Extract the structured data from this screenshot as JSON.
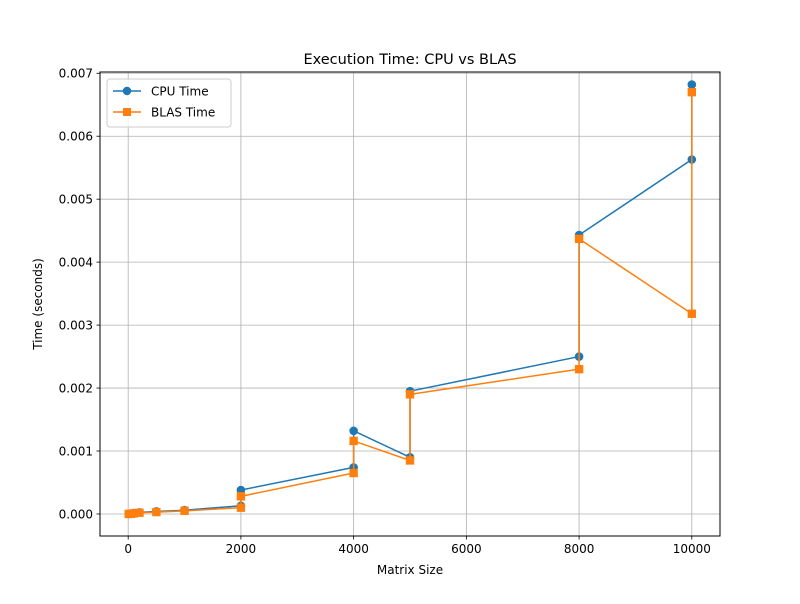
{
  "chart_data": {
    "type": "line",
    "title": "Execution Time: CPU vs BLAS",
    "xlabel": "Matrix Size",
    "ylabel": "Time (seconds)",
    "xlim": [
      -500,
      10500
    ],
    "ylim": [
      -0.00035,
      0.00702
    ],
    "xticks": [
      0,
      2000,
      4000,
      6000,
      8000,
      10000
    ],
    "yticks": [
      0.0,
      0.001,
      0.002,
      0.003,
      0.004,
      0.005,
      0.006,
      0.007
    ],
    "ytick_decimals": 3,
    "grid": true,
    "legend_position": "top-left",
    "series": [
      {
        "name": "CPU Time",
        "color": "#1f77b4",
        "marker": "circle",
        "x": [
          10,
          50,
          100,
          200,
          500,
          1000,
          2000,
          2000,
          4000,
          4000,
          5000,
          5000,
          8000,
          8000,
          10000,
          10000
        ],
        "y": [
          1e-06,
          3e-06,
          1.5e-05,
          2.5e-05,
          4e-05,
          6e-05,
          0.00013,
          0.00038,
          0.00074,
          0.00132,
          0.0009,
          0.00195,
          0.0025,
          0.00443,
          0.00563,
          0.00682
        ]
      },
      {
        "name": "BLAS Time",
        "color": "#ff7f0e",
        "marker": "square",
        "x": [
          10,
          50,
          100,
          200,
          500,
          1000,
          2000,
          2000,
          4000,
          4000,
          5000,
          5000,
          8000,
          8000,
          10000,
          10000
        ],
        "y": [
          1e-06,
          2e-06,
          1e-05,
          2e-05,
          3e-05,
          5e-05,
          0.0001,
          0.00028,
          0.00065,
          0.00116,
          0.00085,
          0.0019,
          0.0023,
          0.00437,
          0.00318,
          0.0067
        ]
      }
    ]
  }
}
